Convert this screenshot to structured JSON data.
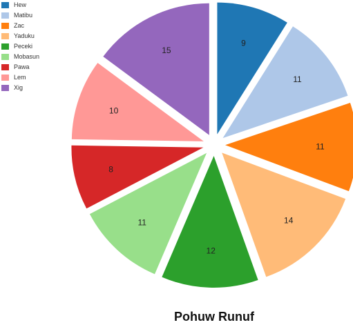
{
  "chart_data": {
    "type": "pie",
    "title": "Pohuw Runuf",
    "legend_position": "top-left",
    "exploded": true,
    "slices": [
      {
        "label": "Hew",
        "value": 9,
        "color": "#1f77b4"
      },
      {
        "label": "Matibu",
        "value": 11,
        "color": "#aec7e8"
      },
      {
        "label": "Zac",
        "value": 11,
        "color": "#ff7f0e"
      },
      {
        "label": "Yaduku",
        "value": 14,
        "color": "#ffbb78"
      },
      {
        "label": "Peceki",
        "value": 12,
        "color": "#2ca02c"
      },
      {
        "label": "Mobasun",
        "value": 11,
        "color": "#98df8a"
      },
      {
        "label": "Pawa",
        "value": 8,
        "color": "#d62728"
      },
      {
        "label": "Lem",
        "value": 10,
        "color": "#ff9896"
      },
      {
        "label": "Xig",
        "value": 15,
        "color": "#9467bd"
      }
    ]
  }
}
